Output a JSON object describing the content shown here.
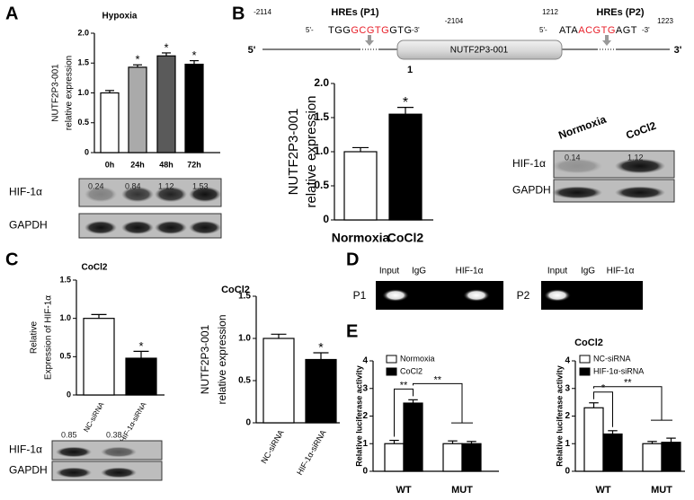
{
  "panel_labels": [
    "A",
    "B",
    "C",
    "D",
    "E"
  ],
  "chart_data": [
    {
      "type": "bar",
      "title": "Hypoxia",
      "ylabel": [
        "NUTF2P3-001",
        "relative expression"
      ],
      "categories": [
        "0h",
        "24h",
        "48h",
        "72h"
      ],
      "values": [
        1.0,
        1.43,
        1.62,
        1.48
      ],
      "errors": [
        0.04,
        0.04,
        0.05,
        0.06
      ],
      "colors": [
        "#ffffff",
        "#aaaaaa",
        "#5a5a5a",
        "#000000"
      ],
      "annotations": [
        "*",
        "*",
        "*"
      ],
      "ylim": [
        0,
        2
      ],
      "yticks": [
        0,
        0.5,
        {
          "value": 1,
          "label": "1.0"
        },
        1.5,
        {
          "value": 2,
          "label": "2.0"
        }
      ]
    },
    {
      "type": "bar",
      "ylabel": [
        "NUTF2P3-001",
        "relative expression"
      ],
      "categories": [
        "Normoxia",
        "CoCl2"
      ],
      "values": [
        1.0,
        1.55
      ],
      "errors": [
        0.06,
        0.1
      ],
      "colors": [
        "#ffffff",
        "#000000"
      ],
      "annotations": [
        "*"
      ],
      "ylim": [
        0,
        2
      ],
      "yticks": [
        0,
        0.5,
        {
          "value": 1,
          "label": "1.0"
        },
        1.5,
        {
          "value": 2,
          "label": "2.0"
        }
      ]
    },
    {
      "type": "bar",
      "title": "CoCl2",
      "ylabel": [
        "Relative",
        "Expression of HIF-1α"
      ],
      "categories": [
        "NC-siRNA",
        "HIF-1α-siRNA"
      ],
      "values": [
        1.0,
        0.48
      ],
      "errors": [
        0.05,
        0.09
      ],
      "colors": [
        "#ffffff",
        "#000000"
      ],
      "annotations": [
        "*"
      ],
      "ylim": [
        0,
        1.5
      ],
      "yticks": [
        0,
        0.5,
        {
          "value": 1,
          "label": "1.0"
        },
        1.5
      ]
    },
    {
      "type": "bar",
      "title": "CoCl2",
      "ylabel": [
        "NUTF2P3-001",
        "relative expression"
      ],
      "categories": [
        "NC-siRNA",
        "HIF-1α-siRNA"
      ],
      "values": [
        1.0,
        0.75
      ],
      "errors": [
        0.05,
        0.08
      ],
      "colors": [
        "#ffffff",
        "#000000"
      ],
      "annotations": [
        "*"
      ],
      "ylim": [
        0,
        1.5
      ],
      "yticks": [
        0,
        0.5,
        {
          "value": 1,
          "label": "1.0"
        },
        1.5
      ]
    },
    {
      "type": "grouped_bar",
      "ylabel": [
        "Relative luciferase activity"
      ],
      "categories": [
        "WT",
        "MUT"
      ],
      "series": [
        {
          "name": "Normoxia",
          "color": "#ffffff",
          "values": [
            1.0,
            1.0
          ],
          "errors": [
            0.12,
            0.1
          ]
        },
        {
          "name": "CoCl2",
          "color": "#000000",
          "values": [
            2.47,
            1.0
          ],
          "errors": [
            0.12,
            0.08
          ]
        }
      ],
      "annotations": [
        "**",
        "**"
      ],
      "ylim": [
        0,
        4
      ],
      "yticks": [
        0,
        1,
        2,
        3,
        4
      ]
    },
    {
      "type": "grouped_bar",
      "title": "CoCl2",
      "ylabel": [
        "Relative luciferase activity"
      ],
      "categories": [
        "WT",
        "MUT"
      ],
      "series": [
        {
          "name": "NC-siRNA",
          "color": "#ffffff",
          "values": [
            2.3,
            1.0
          ],
          "errors": [
            0.18,
            0.08
          ]
        },
        {
          "name": "HIF-1α-siRNA",
          "color": "#000000",
          "values": [
            1.35,
            1.05
          ],
          "errors": [
            0.12,
            0.15
          ]
        }
      ],
      "annotations": [
        "*",
        "**"
      ],
      "ylim": [
        0,
        4
      ],
      "yticks": [
        0,
        1,
        2,
        3,
        4
      ]
    }
  ],
  "blots": [
    {
      "rows": [
        {
          "label": "HIF-1α",
          "values": [
            0.24,
            0.84,
            1.12,
            1.53
          ]
        },
        {
          "label": "GAPDH"
        }
      ]
    },
    {
      "headers": [
        "Normoxia",
        "CoCl2"
      ],
      "rows": [
        {
          "label": "HIF-1α",
          "values": [
            0.14,
            1.12
          ]
        },
        {
          "label": "GAPDH"
        }
      ]
    },
    {
      "rows": [
        {
          "label": "HIF-1α",
          "values": [
            0.85,
            0.38
          ]
        },
        {
          "label": "GAPDH"
        }
      ]
    }
  ],
  "diagram": {
    "strand": [
      "5'",
      "3'"
    ],
    "seq_ends": [
      "5'-",
      "-3'"
    ],
    "gene": "NUTF2P3-001",
    "position": "1",
    "hres": [
      {
        "start": "-2114",
        "name": "HREs (P1)",
        "end": "-2104",
        "seq": [
          "TGG",
          "GCGTG",
          "GTG"
        ]
      },
      {
        "start": "1212",
        "name": "HREs (P2)",
        "end": "1223",
        "seq": [
          "ATA",
          "ACGTG",
          "AGT"
        ]
      }
    ]
  },
  "chip": {
    "columns": [
      "Input",
      "IgG",
      "HIF-1α"
    ],
    "rows": [
      "P1",
      "P2"
    ]
  }
}
